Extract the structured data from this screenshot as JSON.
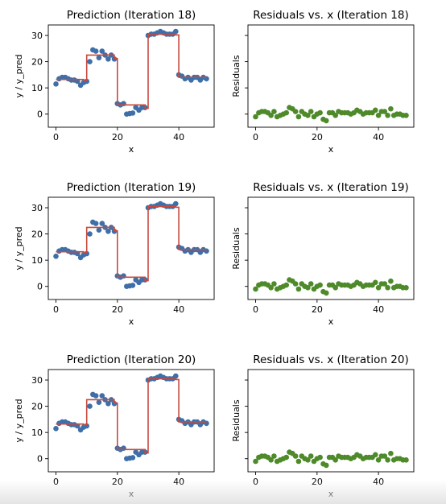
{
  "chart_data": [
    {
      "type": "line",
      "title": "Prediction (Iteration 18)",
      "xlabel": "x",
      "ylabel": "y / y_pred",
      "xlim": [
        -2.5,
        51.5
      ],
      "ylim": [
        -5,
        34
      ],
      "xticks": [
        "0",
        "20",
        "40"
      ],
      "yticks": [
        "0",
        "10",
        "20",
        "30"
      ],
      "series": [
        {
          "name": "",
          "kind": "scatter",
          "color": "#3f6fa8",
          "x": [
            0,
            1,
            2,
            3,
            4,
            5,
            6,
            7,
            8,
            9,
            10,
            11,
            12,
            13,
            14,
            15,
            16,
            17,
            18,
            19,
            20,
            21,
            22,
            23,
            24,
            25,
            26,
            27,
            28,
            29,
            30,
            31,
            32,
            33,
            34,
            35,
            36,
            37,
            38,
            39,
            40,
            41,
            42,
            43,
            44,
            45,
            46,
            47,
            48,
            49
          ],
          "y": [
            11.5,
            13.5,
            14,
            14,
            13.5,
            13,
            13,
            12.5,
            11,
            12,
            12.5,
            20,
            24.5,
            24,
            21.5,
            24,
            22.5,
            21,
            22.5,
            21,
            4,
            3.5,
            4,
            0,
            0.2,
            0.4,
            2.5,
            1.5,
            2.5,
            2.5,
            30,
            30.5,
            30.5,
            31,
            31.5,
            31,
            30.5,
            30.5,
            30.5,
            31.5,
            15,
            14.5,
            13.5,
            14,
            13,
            14,
            14,
            13,
            14,
            13.5
          ]
        },
        {
          "name": "",
          "kind": "line",
          "color": "#c8493f",
          "x": [
            0,
            9,
            9,
            10,
            10,
            19,
            19,
            20,
            20,
            29,
            29,
            30,
            30,
            39,
            39,
            40,
            40,
            49
          ],
          "y": [
            13.2,
            13.2,
            12.8,
            12.8,
            22.5,
            22.5,
            21.2,
            21.2,
            3.5,
            3.5,
            2.2,
            2.2,
            30.5,
            30.5,
            30.2,
            30.2,
            14,
            14
          ]
        }
      ]
    },
    {
      "type": "scatter",
      "title": "Residuals vs. x (Iteration 18)",
      "xlabel": "x",
      "ylabel": "Residuals",
      "xlim": [
        -2.5,
        51.5
      ],
      "ylim": [
        -5,
        34
      ],
      "xticks": [
        "0",
        "20",
        "40"
      ],
      "yticks": [],
      "series": [
        {
          "name": "",
          "color": "#4e8a2a",
          "x": [
            0,
            1,
            2,
            3,
            4,
            5,
            6,
            7,
            8,
            9,
            10,
            11,
            12,
            13,
            14,
            15,
            16,
            17,
            18,
            19,
            20,
            21,
            22,
            23,
            24,
            25,
            26,
            27,
            28,
            29,
            30,
            31,
            32,
            33,
            34,
            35,
            36,
            37,
            38,
            39,
            40,
            41,
            42,
            43,
            44,
            45,
            46,
            47,
            48,
            49
          ],
          "y": [
            -1,
            0.5,
            1,
            1,
            0.5,
            -0.5,
            1,
            -1,
            -0.5,
            0,
            0.5,
            2.5,
            2,
            1,
            -1,
            1,
            0,
            -0.5,
            1,
            -1,
            0,
            0.5,
            -2,
            -2.5,
            0.5,
            0.5,
            -0.5,
            1,
            0.5,
            0.5,
            0.5,
            0,
            0.5,
            1.5,
            1,
            0,
            0.5,
            0.5,
            0.5,
            1.5,
            -0.5,
            1,
            1,
            -0.5,
            2,
            -0.5,
            0,
            0,
            -0.5,
            -0.5
          ]
        }
      ]
    },
    {
      "type": "line",
      "title": "Prediction (Iteration 19)",
      "xlabel": "x",
      "ylabel": "y / y_pred",
      "xlim": [
        -2.5,
        51.5
      ],
      "ylim": [
        -5,
        34
      ],
      "xticks": [
        "0",
        "20",
        "40"
      ],
      "yticks": [
        "0",
        "10",
        "20",
        "30"
      ],
      "series": [
        {
          "name": "",
          "kind": "scatter",
          "color": "#3f6fa8",
          "x": [
            0,
            1,
            2,
            3,
            4,
            5,
            6,
            7,
            8,
            9,
            10,
            11,
            12,
            13,
            14,
            15,
            16,
            17,
            18,
            19,
            20,
            21,
            22,
            23,
            24,
            25,
            26,
            27,
            28,
            29,
            30,
            31,
            32,
            33,
            34,
            35,
            36,
            37,
            38,
            39,
            40,
            41,
            42,
            43,
            44,
            45,
            46,
            47,
            48,
            49
          ],
          "y": [
            11.5,
            13.5,
            14,
            14,
            13.5,
            13,
            13,
            12.5,
            11,
            12,
            12.5,
            20,
            24.5,
            24,
            21.5,
            24,
            22.5,
            21,
            22.5,
            21,
            4,
            3.5,
            4,
            0,
            0.2,
            0.4,
            2.5,
            1.5,
            2.5,
            2.5,
            30,
            30.5,
            30.5,
            31,
            31.5,
            31,
            30.5,
            30.5,
            30.5,
            31.5,
            15,
            14.5,
            13.5,
            14,
            13,
            14,
            14,
            13,
            14,
            13.5
          ]
        },
        {
          "name": "",
          "kind": "line",
          "color": "#c8493f",
          "x": [
            0,
            9,
            9,
            10,
            10,
            19,
            19,
            20,
            20,
            29,
            29,
            30,
            30,
            39,
            39,
            40,
            40,
            49
          ],
          "y": [
            13.2,
            13.2,
            12.8,
            12.8,
            22.5,
            22.5,
            21.2,
            21.2,
            3.5,
            3.5,
            2.2,
            2.2,
            30.5,
            30.5,
            30.2,
            30.2,
            14,
            14
          ]
        }
      ]
    },
    {
      "type": "scatter",
      "title": "Residuals vs. x (Iteration 19)",
      "xlabel": "x",
      "ylabel": "Residuals",
      "xlim": [
        -2.5,
        51.5
      ],
      "ylim": [
        -5,
        34
      ],
      "xticks": [
        "0",
        "20",
        "40"
      ],
      "yticks": [],
      "series": [
        {
          "name": "",
          "color": "#4e8a2a",
          "x": [
            0,
            1,
            2,
            3,
            4,
            5,
            6,
            7,
            8,
            9,
            10,
            11,
            12,
            13,
            14,
            15,
            16,
            17,
            18,
            19,
            20,
            21,
            22,
            23,
            24,
            25,
            26,
            27,
            28,
            29,
            30,
            31,
            32,
            33,
            34,
            35,
            36,
            37,
            38,
            39,
            40,
            41,
            42,
            43,
            44,
            45,
            46,
            47,
            48,
            49
          ],
          "y": [
            -1,
            0.5,
            1,
            1,
            0.5,
            -0.5,
            1,
            -1,
            -0.5,
            0,
            0.5,
            2.5,
            2,
            1,
            -1,
            1,
            0,
            -0.5,
            1,
            -1,
            0,
            0.5,
            -2,
            -2.5,
            0.5,
            0.5,
            -0.5,
            1,
            0.5,
            0.5,
            0.5,
            0,
            0.5,
            1.5,
            1,
            0,
            0.5,
            0.5,
            0.5,
            1.5,
            -0.5,
            1,
            1,
            -0.5,
            2,
            -0.5,
            0,
            0,
            -0.5,
            -0.5
          ]
        }
      ]
    },
    {
      "type": "line",
      "title": "Prediction (Iteration 20)",
      "xlabel": "x",
      "ylabel": "y / y_pred",
      "xlim": [
        -2.5,
        51.5
      ],
      "ylim": [
        -5,
        34
      ],
      "xticks": [
        "0",
        "20",
        "40"
      ],
      "yticks": [
        "0",
        "10",
        "20",
        "30"
      ],
      "series": [
        {
          "name": "",
          "kind": "scatter",
          "color": "#3f6fa8",
          "x": [
            0,
            1,
            2,
            3,
            4,
            5,
            6,
            7,
            8,
            9,
            10,
            11,
            12,
            13,
            14,
            15,
            16,
            17,
            18,
            19,
            20,
            21,
            22,
            23,
            24,
            25,
            26,
            27,
            28,
            29,
            30,
            31,
            32,
            33,
            34,
            35,
            36,
            37,
            38,
            39,
            40,
            41,
            42,
            43,
            44,
            45,
            46,
            47,
            48,
            49
          ],
          "y": [
            11.5,
            13.5,
            14,
            14,
            13.5,
            13,
            13,
            12.5,
            11,
            12,
            12.5,
            20,
            24.5,
            24,
            21.5,
            24,
            22.5,
            21,
            22.5,
            21,
            4,
            3.5,
            4,
            0,
            0.2,
            0.4,
            2.5,
            1.5,
            2.5,
            2.5,
            30,
            30.5,
            30.5,
            31,
            31.5,
            31,
            30.5,
            30.5,
            30.5,
            31.5,
            15,
            14.5,
            13.5,
            14,
            13,
            14,
            14,
            13,
            14,
            13.5
          ]
        },
        {
          "name": "",
          "kind": "line",
          "color": "#c8493f",
          "x": [
            0,
            9,
            9,
            10,
            10,
            19,
            19,
            20,
            20,
            29,
            29,
            30,
            30,
            39,
            39,
            40,
            40,
            49
          ],
          "y": [
            13.2,
            13.2,
            12.8,
            12.8,
            22.5,
            22.5,
            21.2,
            21.2,
            3.5,
            3.5,
            2.2,
            2.2,
            30.5,
            30.5,
            30.2,
            30.2,
            14,
            14
          ]
        }
      ]
    },
    {
      "type": "scatter",
      "title": "Residuals vs. x (Iteration 20)",
      "xlabel": "x",
      "ylabel": "Residuals",
      "xlim": [
        -2.5,
        51.5
      ],
      "ylim": [
        -5,
        34
      ],
      "xticks": [
        "0",
        "20",
        "40"
      ],
      "yticks": [],
      "series": [
        {
          "name": "",
          "color": "#4e8a2a",
          "x": [
            0,
            1,
            2,
            3,
            4,
            5,
            6,
            7,
            8,
            9,
            10,
            11,
            12,
            13,
            14,
            15,
            16,
            17,
            18,
            19,
            20,
            21,
            22,
            23,
            24,
            25,
            26,
            27,
            28,
            29,
            30,
            31,
            32,
            33,
            34,
            35,
            36,
            37,
            38,
            39,
            40,
            41,
            42,
            43,
            44,
            45,
            46,
            47,
            48,
            49
          ],
          "y": [
            -1,
            0.5,
            1,
            1,
            0.5,
            -0.5,
            1,
            -1,
            -0.5,
            0,
            0.5,
            2.5,
            2,
            1,
            -1,
            1,
            0,
            -0.5,
            1,
            -1,
            0,
            0.5,
            -2,
            -2.5,
            0.5,
            0.5,
            -0.5,
            1,
            0.5,
            0.5,
            0.5,
            0,
            0.5,
            1.5,
            1,
            0,
            0.5,
            0.5,
            0.5,
            1.5,
            -0.5,
            1,
            1,
            -0.5,
            2,
            -0.5,
            0,
            0,
            -0.5,
            -0.5
          ]
        }
      ]
    }
  ]
}
